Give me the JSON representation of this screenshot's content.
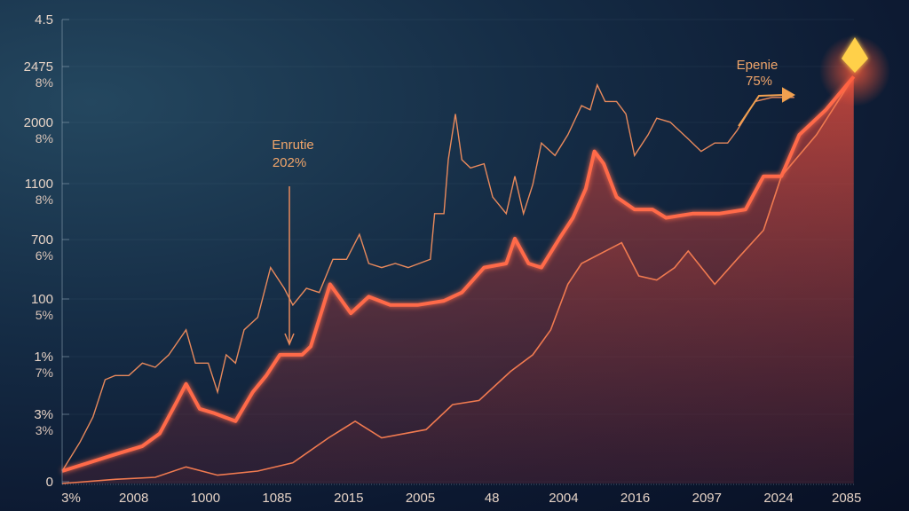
{
  "chart_data": {
    "type": "line",
    "title": "",
    "xlabel": "",
    "ylabel": "",
    "grid": true,
    "x_tick_labels": [
      "3%",
      "2008",
      "1000",
      "1085",
      "2015",
      "2005",
      "48",
      "2004",
      "2016",
      "2097",
      "2024",
      "2085"
    ],
    "y_tick_labels": [
      {
        "value": "4.5",
        "sub": ""
      },
      {
        "value": "2475",
        "sub": "8%"
      },
      {
        "value": "2000",
        "sub": "8%"
      },
      {
        "value": "1100",
        "sub": "8%"
      },
      {
        "value": "700",
        "sub": "6%"
      },
      {
        "value": "100",
        "sub": "5%"
      },
      {
        "value": "1%",
        "sub": "7%"
      },
      {
        "value": "3%",
        "sub": "3%"
      },
      {
        "value": "0",
        "sub": ""
      }
    ],
    "xlim": [
      0,
      11
    ],
    "ylim": [
      0,
      100
    ],
    "series": [
      {
        "style": "thin-upper",
        "color": "#e8895c",
        "x": [
          0,
          0.25,
          0.43,
          0.6,
          0.74,
          0.93,
          1.12,
          1.3,
          1.49,
          1.73,
          1.86,
          2.04,
          2.17,
          2.29,
          2.42,
          2.54,
          2.73,
          2.91,
          3.1,
          3.22,
          3.41,
          3.59,
          3.78,
          3.97,
          4.15,
          4.28,
          4.46,
          4.65,
          4.83,
          5.14,
          5.2,
          5.33,
          5.39,
          5.49,
          5.58,
          5.7,
          5.89,
          6.01,
          6.2,
          6.32,
          6.44,
          6.57,
          6.69,
          6.88,
          7.06,
          7.25,
          7.37,
          7.47,
          7.58,
          7.74,
          7.87,
          7.99,
          8.18,
          8.3,
          8.49,
          8.74,
          8.92,
          9.11,
          9.29,
          9.42,
          9.67,
          9.91,
          10.22
        ],
        "y": [
          3,
          10,
          16,
          25,
          26,
          26,
          29,
          28,
          31,
          37,
          29,
          29,
          22,
          31,
          29,
          37,
          40,
          52,
          47,
          43,
          47,
          46,
          54,
          54,
          60,
          53,
          52,
          53,
          52,
          54,
          65,
          65,
          78,
          89,
          78,
          76,
          77,
          69,
          65,
          74,
          65,
          72,
          82,
          79,
          84,
          91,
          90,
          96,
          92,
          92,
          89,
          79,
          84,
          88,
          87,
          83,
          80,
          82,
          82,
          85,
          92,
          93,
          93
        ]
      },
      {
        "style": "thick-glow-filled",
        "color": "#ff6a4a",
        "x": [
          0,
          0.37,
          0.74,
          1.12,
          1.36,
          1.61,
          1.73,
          1.92,
          2.11,
          2.42,
          2.66,
          2.85,
          3.04,
          3.35,
          3.47,
          3.74,
          4.03,
          4.28,
          4.58,
          4.96,
          5.33,
          5.58,
          5.89,
          6.2,
          6.32,
          6.51,
          6.69,
          6.94,
          7.13,
          7.31,
          7.43,
          7.56,
          7.74,
          7.99,
          8.24,
          8.43,
          8.8,
          9.17,
          9.54,
          9.79,
          10.04,
          10.29,
          10.66,
          11.05
        ],
        "y": [
          3,
          5,
          7,
          9,
          12,
          20,
          24,
          18,
          17,
          15,
          22,
          26,
          31,
          31,
          33,
          48,
          41,
          45,
          43,
          43,
          44,
          46,
          52,
          53,
          59,
          53,
          52,
          59,
          64,
          71,
          80,
          77,
          69,
          66,
          66,
          64,
          65,
          65,
          66,
          74,
          74,
          84,
          90,
          98
        ]
      },
      {
        "style": "thin-lower",
        "color": "#f07a50",
        "x": [
          0,
          0.74,
          1.3,
          1.73,
          2.17,
          2.73,
          3.22,
          3.72,
          4.09,
          4.46,
          5.08,
          5.45,
          5.82,
          6.26,
          6.57,
          6.82,
          7.06,
          7.25,
          7.81,
          8.05,
          8.3,
          8.55,
          8.74,
          9.11,
          9.42,
          9.79,
          10.04,
          10.53,
          11.05
        ],
        "y": [
          0,
          1,
          1.5,
          4,
          2,
          3,
          5,
          11,
          15,
          11,
          13,
          19,
          20,
          27,
          31,
          37,
          48,
          53,
          58,
          50,
          49,
          52,
          56,
          48,
          54,
          61,
          74,
          84,
          98
        ]
      }
    ],
    "annotations": [
      {
        "label": "Enrutie",
        "value": "202%"
      },
      {
        "label": "Epenie",
        "value": "75%"
      }
    ],
    "marker_icon": "diamond-icon",
    "colors": {
      "accent": "#ff6a4a",
      "marker": "#ffd04a"
    }
  }
}
